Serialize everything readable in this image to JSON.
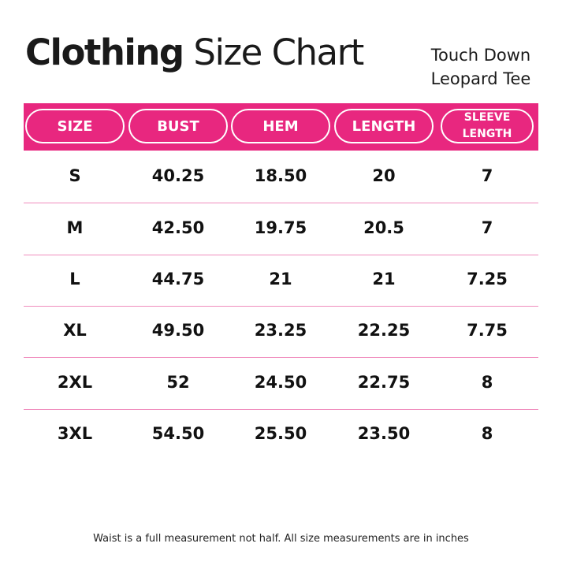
{
  "header": {
    "title_bold": "Clothing",
    "title_regular": "Size Chart",
    "subtitle": [
      "Touch Down",
      "Leopard Tee"
    ]
  },
  "table": {
    "columns": [
      "SIZE",
      "BUST",
      "HEM",
      "LENGTH",
      "SLEEVE LENGTH"
    ],
    "rows": [
      [
        "S",
        "40.25",
        "18.50",
        "20",
        "7"
      ],
      [
        "M",
        "42.50",
        "19.75",
        "20.5",
        "7"
      ],
      [
        "L",
        "44.75",
        "21",
        "21",
        "7.25"
      ],
      [
        "XL",
        "49.50",
        "23.25",
        "22.25",
        "7.75"
      ],
      [
        "2XL",
        "52",
        "24.50",
        "22.75",
        "8"
      ],
      [
        "3XL",
        "54.50",
        "25.50",
        "23.50",
        "8"
      ]
    ]
  },
  "footnote": "Waist is a full measurement not half. All size measurements are in inches"
}
